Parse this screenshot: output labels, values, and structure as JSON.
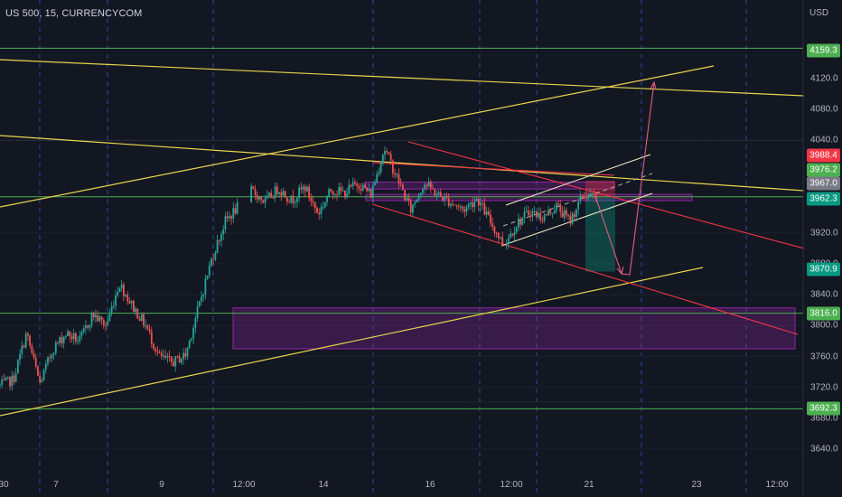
{
  "header": {
    "symbol": "US 500, 15, CURRENCYCOM",
    "currency": "USD"
  },
  "chart_data": {
    "type": "candlestick",
    "title": "US 500, 15, CURRENCYCOM",
    "currency": "USD",
    "y_ticks": [
      4120.0,
      4080.0,
      4040.0,
      3920.0,
      3880.0,
      3840.0,
      3800.0,
      3760.0,
      3720.0,
      3680.0,
      3640.0
    ],
    "x_ticks": [
      {
        "label": "30",
        "pos": 0
      },
      {
        "label": "7",
        "pos": 1
      },
      {
        "label": "9",
        "pos": 2
      },
      {
        "label": "12:00",
        "pos": 3
      },
      {
        "label": "14",
        "pos": 4
      },
      {
        "label": "16",
        "pos": 5
      },
      {
        "label": "12:00",
        "pos": 6
      },
      {
        "label": "21",
        "pos": 7
      },
      {
        "label": "23",
        "pos": 8
      },
      {
        "label": "12:00",
        "pos": 9
      }
    ],
    "price_tags": [
      {
        "value": "4159.3",
        "price": 4159.3,
        "color": "#4caf50"
      },
      {
        "value": "3988.4",
        "price": 3988.4,
        "color": "#f23645"
      },
      {
        "value": "3976.2",
        "price": 3976.2,
        "color": "#4caf50"
      },
      {
        "value": "3967.0",
        "price": 3967.0,
        "color": "#787b86"
      },
      {
        "value": "3962.3",
        "price": 3962.3,
        "color": "#089981"
      },
      {
        "value": "3870.9",
        "price": 3870.9,
        "color": "#089981"
      },
      {
        "value": "3816.0",
        "price": 3816.0,
        "color": "#4caf50"
      },
      {
        "value": "3692.3",
        "price": 3692.3,
        "color": "#4caf50"
      }
    ],
    "horizontal_levels": [
      4159.3,
      3967.0,
      3816.0,
      3692.3
    ],
    "zones": [
      {
        "from": 3770,
        "to": 3823,
        "color": "#9c27b0"
      },
      {
        "from": 3977,
        "to": 3986,
        "color": "#9c27b0"
      },
      {
        "from": 3962,
        "to": 3970,
        "color": "#9c27b0"
      }
    ],
    "price_path": [
      3722,
      3730,
      3790,
      3725,
      3770,
      3790,
      3780,
      3815,
      3800,
      3855,
      3825,
      3800,
      3760,
      3752,
      3762,
      3825,
      3888,
      3935,
      3955,
      3975,
      3960,
      3978,
      3962,
      3980,
      3945,
      3976,
      3972,
      3985,
      3970,
      4030,
      3990,
      3950,
      3985,
      3970,
      3960,
      3950,
      3965,
      3935,
      3905,
      3932,
      3948,
      3940,
      3955,
      3935,
      3970,
      3965
    ]
  }
}
